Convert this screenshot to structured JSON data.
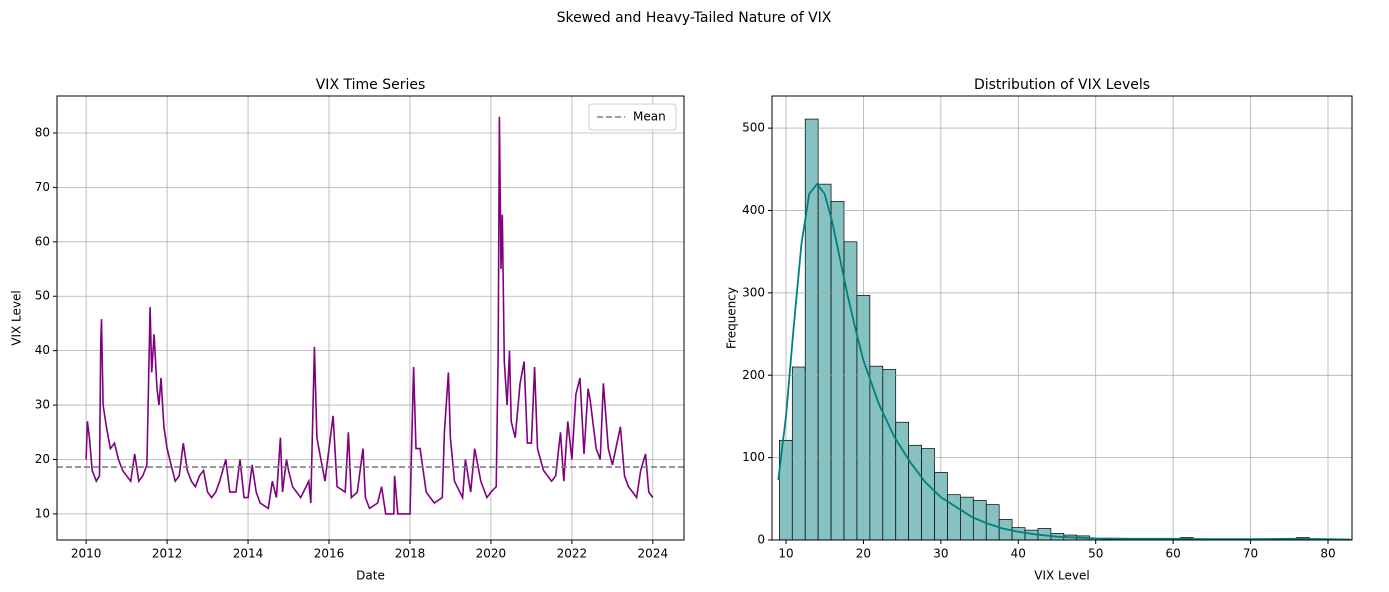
{
  "title": "Skewed and Heavy-Tailed Nature of VIX",
  "chart_data": [
    {
      "type": "line",
      "title": "VIX Time Series",
      "xlabel": "Date",
      "ylabel": "VIX Level",
      "x": [
        2010.0,
        2010.03,
        2010.08,
        2010.15,
        2010.25,
        2010.33,
        2010.36,
        2010.38,
        2010.42,
        2010.5,
        2010.55,
        2010.6,
        2010.7,
        2010.8,
        2010.9,
        2011.0,
        2011.1,
        2011.2,
        2011.3,
        2011.4,
        2011.5,
        2011.58,
        2011.62,
        2011.68,
        2011.75,
        2011.8,
        2011.85,
        2011.92,
        2012.0,
        2012.1,
        2012.2,
        2012.3,
        2012.4,
        2012.5,
        2012.6,
        2012.7,
        2012.8,
        2012.9,
        2013.0,
        2013.1,
        2013.2,
        2013.3,
        2013.45,
        2013.55,
        2013.7,
        2013.8,
        2013.9,
        2014.0,
        2014.1,
        2014.2,
        2014.3,
        2014.5,
        2014.6,
        2014.7,
        2014.8,
        2014.85,
        2014.95,
        2015.0,
        2015.1,
        2015.3,
        2015.5,
        2015.55,
        2015.64,
        2015.7,
        2015.8,
        2015.9,
        2016.0,
        2016.1,
        2016.2,
        2016.4,
        2016.48,
        2016.55,
        2016.7,
        2016.84,
        2016.9,
        2017.0,
        2017.2,
        2017.3,
        2017.4,
        2017.6,
        2017.62,
        2017.7,
        2017.9,
        2018.0,
        2018.09,
        2018.15,
        2018.25,
        2018.4,
        2018.6,
        2018.8,
        2018.85,
        2018.95,
        2019.0,
        2019.1,
        2019.3,
        2019.37,
        2019.5,
        2019.6,
        2019.75,
        2019.9,
        2020.0,
        2020.13,
        2020.18,
        2020.21,
        2020.25,
        2020.28,
        2020.33,
        2020.4,
        2020.46,
        2020.5,
        2020.6,
        2020.72,
        2020.82,
        2020.9,
        2021.0,
        2021.08,
        2021.15,
        2021.3,
        2021.5,
        2021.6,
        2021.72,
        2021.8,
        2021.9,
        2022.0,
        2022.1,
        2022.2,
        2022.3,
        2022.4,
        2022.45,
        2022.6,
        2022.7,
        2022.78,
        2022.9,
        2023.0,
        2023.2,
        2023.3,
        2023.4,
        2023.5,
        2023.6,
        2023.7,
        2023.82,
        2023.9,
        2024.0
      ],
      "series": [
        {
          "color": "purple",
          "values": [
            20,
            27,
            24,
            18,
            16,
            17,
            41,
            45.8,
            30,
            26,
            24,
            22,
            23,
            20,
            18,
            17,
            16,
            21,
            16,
            17,
            19,
            48,
            36,
            43,
            33,
            30,
            35,
            26,
            22,
            19,
            16,
            17,
            23,
            18,
            16,
            15,
            17,
            18,
            14,
            13,
            14,
            16,
            20,
            14,
            14,
            20,
            13,
            13,
            19,
            14,
            12,
            11,
            16,
            13,
            24,
            14,
            20,
            18,
            15,
            13,
            16,
            12,
            40.7,
            24,
            20,
            16,
            22,
            28,
            15,
            14,
            25,
            13,
            14,
            22,
            13,
            11,
            12,
            15,
            10,
            10,
            17,
            10,
            10,
            10,
            37,
            22,
            22,
            14,
            12,
            13,
            25,
            36,
            24,
            16,
            13,
            20,
            14,
            22,
            16,
            13,
            14,
            15,
            40,
            83,
            55,
            65,
            38,
            30,
            40,
            27,
            24,
            34,
            38,
            23,
            23,
            37,
            22,
            18,
            16,
            17,
            25,
            16,
            27,
            20,
            32,
            35,
            21,
            33,
            31,
            22,
            20,
            34,
            22,
            19,
            26,
            17,
            15,
            14,
            13,
            18,
            21,
            14,
            13
          ]
        }
      ],
      "hlines": [
        {
          "name": "Mean",
          "value": 18.6,
          "color": "gray",
          "style": "dashed"
        }
      ],
      "xlim": [
        2009.28,
        2024.77
      ],
      "xticks": [
        2010,
        2012,
        2014,
        2016,
        2018,
        2020,
        2022,
        2024
      ],
      "ylim": [
        5.2,
        86.8
      ],
      "yticks": [
        10,
        20,
        30,
        40,
        50,
        60,
        70,
        80
      ],
      "grid": true,
      "legend": "upper right"
    },
    {
      "type": "histogram",
      "title": "Distribution of VIX Levels",
      "xlabel": "VIX Level",
      "ylabel": "Frequency",
      "bins": [
        9.14,
        10.81,
        12.48,
        14.15,
        15.82,
        17.49,
        19.16,
        20.83,
        22.5,
        24.17,
        25.84,
        27.51,
        29.18,
        30.85,
        32.52,
        34.19,
        35.86,
        37.53,
        39.2,
        40.87,
        42.54,
        44.21,
        45.88,
        47.55,
        49.22,
        50.89,
        52.56,
        54.23,
        55.9,
        57.57,
        59.24,
        60.91,
        62.58,
        64.25,
        65.92,
        67.59,
        69.26,
        70.93,
        72.6,
        74.27,
        75.94,
        77.61,
        79.28,
        80.95,
        82.62
      ],
      "counts": [
        121,
        210,
        511,
        432,
        411,
        362,
        297,
        211,
        207,
        143,
        115,
        111,
        82,
        55,
        52,
        48,
        43,
        25,
        15,
        12,
        14,
        8,
        6,
        5,
        2,
        1,
        1,
        2,
        1,
        1,
        1,
        3,
        1,
        1,
        1,
        0,
        1,
        1,
        1,
        1,
        3,
        1,
        1,
        1
      ],
      "color": "#7fbfbf",
      "edgecolor": "#000000",
      "kde": {
        "color": "#008080",
        "x": [
          9,
          10,
          11,
          12,
          13,
          14,
          15,
          16,
          17,
          18,
          19,
          20,
          22,
          24,
          26,
          28,
          30,
          32,
          34,
          36,
          38,
          40,
          42,
          45,
          50,
          55,
          60,
          65,
          70,
          75,
          80,
          83
        ],
        "y": [
          73,
          150,
          260,
          360,
          420,
          432,
          420,
          385,
          340,
          295,
          255,
          218,
          165,
          125,
          95,
          70,
          52,
          40,
          28,
          20,
          14,
          10,
          7,
          4,
          2,
          1.5,
          1.5,
          1,
          1,
          1.5,
          1,
          0.5
        ]
      },
      "xlim": [
        8.19,
        83.1
      ],
      "xticks": [
        10,
        20,
        30,
        40,
        50,
        60,
        70,
        80
      ],
      "ylim": [
        0,
        539
      ],
      "yticks": [
        0,
        100,
        200,
        300,
        400,
        500
      ],
      "grid": true
    }
  ]
}
